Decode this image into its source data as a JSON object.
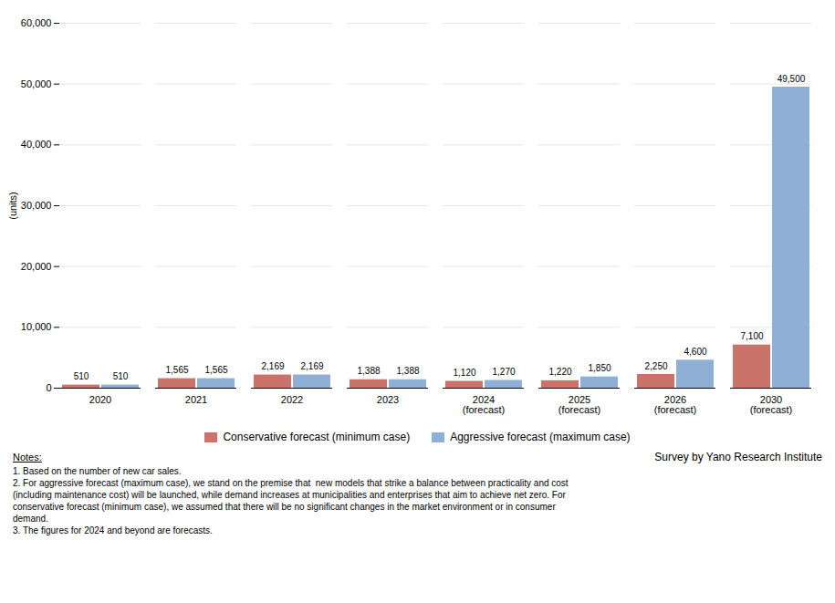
{
  "chart_data": {
    "type": "bar",
    "categories": [
      "2020",
      "2021",
      "2022",
      "2023",
      "2024\n(forecast)",
      "2025\n(forecast)",
      "2026\n(forecast)",
      "2030\n(forecast)"
    ],
    "series": [
      {
        "name": "Conservative forecast (minimum case)",
        "color": "#c9736a",
        "values": [
          510,
          1565,
          2169,
          1388,
          1120,
          1220,
          2250,
          7100
        ],
        "value_labels": [
          "510",
          "1,565",
          "2,169",
          "1,388",
          "1,120",
          "1,220",
          "2,250",
          "7,100"
        ]
      },
      {
        "name": "Aggressive forecast (maximum case)",
        "color": "#8fafd4",
        "values": [
          510,
          1565,
          2169,
          1388,
          1270,
          1850,
          4600,
          49500
        ],
        "value_labels": [
          "510",
          "1,565",
          "2,169",
          "1,388",
          "1,270",
          "1,850",
          "4,600",
          "49,500"
        ]
      }
    ],
    "ylabel": "(units)",
    "ylim": [
      0,
      60000
    ],
    "yticks": [
      0,
      {
        "value": 10000,
        "label": "10,000"
      },
      {
        "value": 20000,
        "label": "20,000"
      },
      {
        "value": 30000,
        "label": "30,000"
      },
      {
        "value": 40000,
        "label": "40,000"
      },
      {
        "value": 50000,
        "label": "50,000"
      },
      {
        "value": 60000,
        "label": "60,000"
      }
    ],
    "grid": true,
    "data_labels": true,
    "legend": "bottom",
    "notes_title": "Notes:",
    "notes": [
      "1. Based on the number of new car sales.",
      "2. For aggressive forecast (maximum case), we stand on the premise that  new models that strike a balance between practicality and cost\n(including maintenance cost) will be launched, while demand increases at municipalities and enterprises that aim to achieve net zero. For\nconservative forecast (minimum case), we assumed that there will be no significant changes in the market environment or in consumer\ndemand.",
      "3. The figures for 2024 and beyond are forecasts."
    ],
    "source": "Survey by Yano Research Institute"
  }
}
